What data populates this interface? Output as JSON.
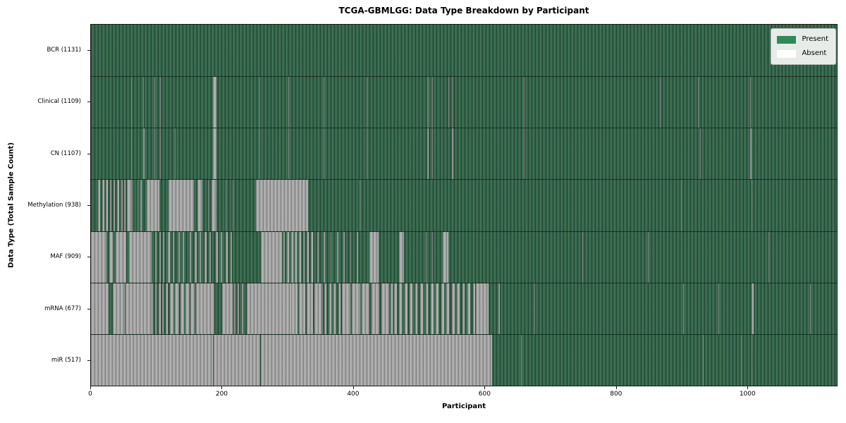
{
  "colors": {
    "present": "#2e8b57",
    "present_rendered": "#356b4d",
    "absent": "#ffffff",
    "absent_rendered": "#a9a9a9",
    "background": "#ffffff",
    "spine": "#1a1a1a",
    "legend_bg": "#e8ece9"
  },
  "legend": {
    "present_label": "Present",
    "absent_label": "Absent"
  },
  "chart_data": {
    "type": "heatmap",
    "title": "TCGA-GBMLGG: Data Type Breakdown by Participant",
    "xlabel": "Participant",
    "ylabel": "Data Type (Total Sample Count)",
    "x_range": [
      0,
      1131
    ],
    "x_axis_units": 1137,
    "x_ticks": [
      0,
      200,
      400,
      600,
      800,
      1000
    ],
    "grid": false,
    "legend_position": "upper right",
    "legend_entries": [
      {
        "label": "Present",
        "color": "#2e8b57"
      },
      {
        "label": "Absent",
        "color": "#ffffff"
      }
    ],
    "value_encoding": {
      "present": "green bar",
      "absent": "white/gray bar"
    },
    "rows": [
      {
        "name": "bcr",
        "label": "BCR (1131)",
        "data_type": "BCR",
        "total_sample_count": 1131,
        "absent_count": 0,
        "absent_runs": []
      },
      {
        "name": "clinical",
        "label": "Clinical (1109)",
        "data_type": "Clinical",
        "total_sample_count": 1109,
        "absent_count": 22,
        "absent_runs": [
          [
            61,
            62
          ],
          [
            79,
            80
          ],
          [
            97,
            98
          ],
          [
            105,
            106
          ],
          [
            186,
            191
          ],
          [
            257,
            258
          ],
          [
            301,
            302
          ],
          [
            355,
            356
          ],
          [
            420,
            421
          ],
          [
            513,
            514
          ],
          [
            515,
            516
          ],
          [
            520,
            521
          ],
          [
            545,
            546
          ],
          [
            550,
            551
          ],
          [
            660,
            661
          ],
          [
            867,
            868
          ],
          [
            925,
            926
          ],
          [
            1005,
            1006
          ]
        ]
      },
      {
        "name": "cn",
        "label": "CN (1107)",
        "data_type": "CN",
        "total_sample_count": 1107,
        "absent_count": 24,
        "absent_runs": [
          [
            61,
            62
          ],
          [
            80,
            82
          ],
          [
            97,
            98
          ],
          [
            105,
            106
          ],
          [
            128,
            129
          ],
          [
            186,
            191
          ],
          [
            257,
            258
          ],
          [
            301,
            302
          ],
          [
            355,
            356
          ],
          [
            420,
            421
          ],
          [
            513,
            515
          ],
          [
            520,
            521
          ],
          [
            550,
            552
          ],
          [
            660,
            661
          ],
          [
            929,
            930
          ],
          [
            1005,
            1007
          ]
        ]
      },
      {
        "name": "methylation",
        "label": "Methylation (938)",
        "data_type": "Methylation",
        "total_sample_count": 938,
        "absent_count": 193,
        "absent_runs": [
          [
            11,
            14
          ],
          [
            17,
            20
          ],
          [
            23,
            26
          ],
          [
            29,
            31
          ],
          [
            34,
            37
          ],
          [
            40,
            43
          ],
          [
            46,
            48
          ],
          [
            51,
            53
          ],
          [
            55,
            62
          ],
          [
            63,
            65
          ],
          [
            71,
            72
          ],
          [
            75,
            77
          ],
          [
            85,
            104
          ],
          [
            118,
            157
          ],
          [
            162,
            170
          ],
          [
            178,
            180
          ],
          [
            184,
            191
          ],
          [
            205,
            206
          ],
          [
            216,
            217
          ],
          [
            251,
            331
          ],
          [
            409,
            410
          ],
          [
            899,
            900
          ],
          [
            1007,
            1008
          ]
        ]
      },
      {
        "name": "maf",
        "label": "MAF (909)",
        "data_type": "MAF",
        "total_sample_count": 909,
        "absent_count": 222,
        "absent_runs": [
          [
            0,
            24
          ],
          [
            28,
            33
          ],
          [
            38,
            54
          ],
          [
            58,
            92
          ],
          [
            98,
            100
          ],
          [
            104,
            106
          ],
          [
            110,
            112
          ],
          [
            117,
            120
          ],
          [
            125,
            127
          ],
          [
            133,
            135
          ],
          [
            140,
            142
          ],
          [
            150,
            153
          ],
          [
            158,
            161
          ],
          [
            166,
            168
          ],
          [
            173,
            176
          ],
          [
            181,
            183
          ],
          [
            190,
            193
          ],
          [
            198,
            200
          ],
          [
            205,
            208
          ],
          [
            213,
            215
          ],
          [
            259,
            291
          ],
          [
            293,
            296
          ],
          [
            299,
            302
          ],
          [
            305,
            308
          ],
          [
            311,
            314
          ],
          [
            317,
            320
          ],
          [
            323,
            326
          ],
          [
            329,
            332
          ],
          [
            335,
            338
          ],
          [
            345,
            347
          ],
          [
            355,
            357
          ],
          [
            365,
            367
          ],
          [
            375,
            377
          ],
          [
            385,
            387
          ],
          [
            395,
            397
          ],
          [
            405,
            407
          ],
          [
            424,
            438
          ],
          [
            470,
            477
          ],
          [
            511,
            512
          ],
          [
            520,
            521
          ],
          [
            536,
            545
          ],
          [
            749,
            750
          ],
          [
            849,
            850
          ],
          [
            1033,
            1034
          ]
        ]
      },
      {
        "name": "mrna",
        "label": "mRNA (677)",
        "data_type": "mRNA",
        "total_sample_count": 677,
        "absent_count": 454,
        "absent_runs": [
          [
            0,
            27
          ],
          [
            33,
            52
          ],
          [
            53,
            92
          ],
          [
            92,
            95
          ],
          [
            98,
            100
          ],
          [
            103,
            106
          ],
          [
            109,
            111
          ],
          [
            114,
            117
          ],
          [
            120,
            126
          ],
          [
            128,
            134
          ],
          [
            136,
            142
          ],
          [
            144,
            150
          ],
          [
            152,
            158
          ],
          [
            160,
            188
          ],
          [
            200,
            216
          ],
          [
            218,
            220
          ],
          [
            224,
            226
          ],
          [
            230,
            232
          ],
          [
            237,
            280
          ],
          [
            281,
            305
          ],
          [
            305,
            315
          ],
          [
            317,
            327
          ],
          [
            329,
            339
          ],
          [
            341,
            351
          ],
          [
            352,
            354
          ],
          [
            356,
            359
          ],
          [
            363,
            366
          ],
          [
            370,
            373
          ],
          [
            377,
            380
          ],
          [
            383,
            395
          ],
          [
            398,
            410
          ],
          [
            413,
            425
          ],
          [
            428,
            440
          ],
          [
            443,
            455
          ],
          [
            457,
            460
          ],
          [
            462,
            466
          ],
          [
            470,
            474
          ],
          [
            478,
            482
          ],
          [
            486,
            490
          ],
          [
            494,
            498
          ],
          [
            502,
            506
          ],
          [
            510,
            514
          ],
          [
            518,
            522
          ],
          [
            526,
            530
          ],
          [
            534,
            538
          ],
          [
            542,
            546
          ],
          [
            550,
            554
          ],
          [
            558,
            562
          ],
          [
            566,
            570
          ],
          [
            574,
            578
          ],
          [
            582,
            586
          ],
          [
            587,
            606
          ],
          [
            621,
            623
          ],
          [
            676,
            677
          ],
          [
            903,
            904
          ],
          [
            956,
            957
          ],
          [
            1007,
            1010
          ],
          [
            1096,
            1097
          ]
        ]
      },
      {
        "name": "mir",
        "label": "miR (517)",
        "data_type": "miR",
        "total_sample_count": 517,
        "absent_count": 614,
        "absent_runs": [
          [
            0,
            186
          ],
          [
            187,
            258
          ],
          [
            259,
            612
          ],
          [
            656,
            657
          ],
          [
            933,
            934
          ],
          [
            991,
            992
          ],
          [
            1007,
            1008
          ]
        ]
      }
    ]
  }
}
